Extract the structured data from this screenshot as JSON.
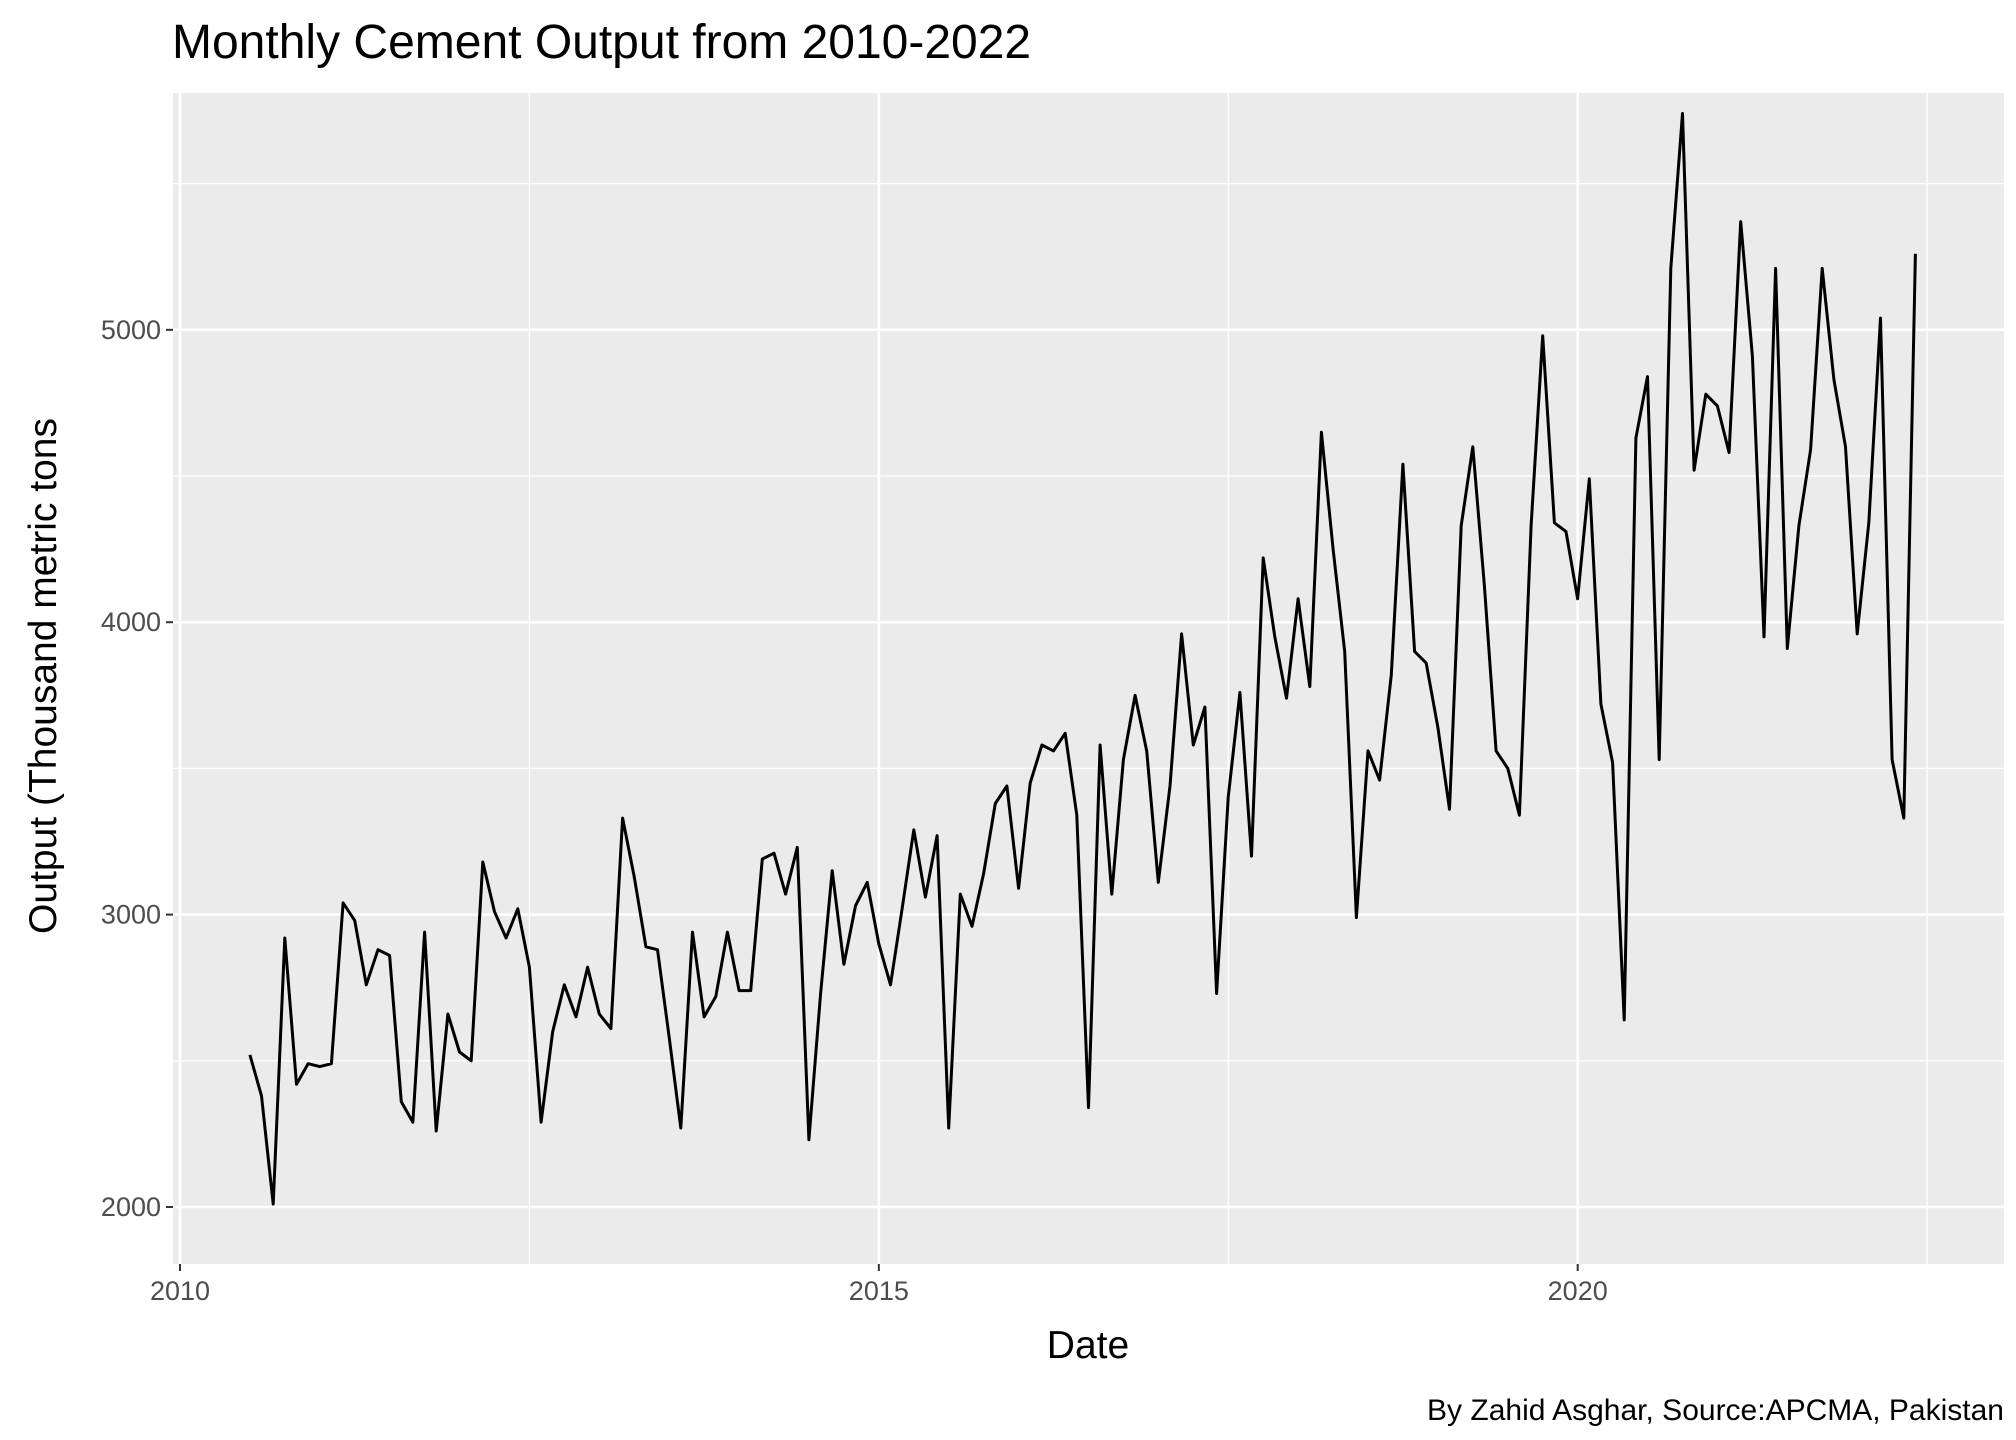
{
  "chart_data": {
    "type": "line",
    "title": "Monthly Cement Output from 2010-2022",
    "xlabel": "Date",
    "ylabel": "Output (Thousand metric tons",
    "caption": "By Zahid Asghar, Source:APCMA, Pakistan",
    "xlim": [
      2009.95,
      2023.05
    ],
    "ylim": [
      1805,
      5810
    ],
    "x_ticks": [
      2010,
      2015,
      2020
    ],
    "x_tick_labels": [
      "2010",
      "2015",
      "2020"
    ],
    "y_ticks": [
      2000,
      3000,
      4000,
      5000
    ],
    "y_tick_labels": [
      "2000",
      "3000",
      "4000",
      "5000"
    ],
    "grid": true,
    "legend": "none",
    "colors": {
      "panel": "#ebebeb",
      "grid": "#ffffff",
      "line": "#000000",
      "tick": "#4d4d4d"
    },
    "series": [
      {
        "x_start": 2010.5,
        "x_step": 0.08333,
        "values": [
          2520,
          2380,
          2010,
          2920,
          2420,
          2490,
          2480,
          2490,
          3040,
          2980,
          2760,
          2880,
          2860,
          2360,
          2290,
          2940,
          2260,
          2660,
          2530,
          2500,
          3180,
          3010,
          2920,
          3020,
          2820,
          2290,
          2600,
          2760,
          2650,
          2820,
          2660,
          2610,
          3330,
          3130,
          2890,
          2880,
          2580,
          2270,
          2940,
          2650,
          2720,
          2940,
          2740,
          2740,
          3190,
          3210,
          3070,
          3230,
          2230,
          2730,
          3150,
          2830,
          3030,
          3110,
          2900,
          2760,
          3020,
          3290,
          3060,
          3270,
          2270,
          3070,
          2960,
          3140,
          3380,
          3440,
          3090,
          3450,
          3580,
          3560,
          3620,
          3340,
          2340,
          3580,
          3070,
          3530,
          3750,
          3560,
          3110,
          3440,
          3960,
          3580,
          3710,
          2730,
          3400,
          3760,
          3200,
          4220,
          3950,
          3740,
          4080,
          3780,
          4650,
          4250,
          3900,
          2990,
          3560,
          3460,
          3820,
          4540,
          3900,
          3860,
          3640,
          3360,
          4330,
          4600,
          4120,
          3560,
          3500,
          3340,
          4330,
          4980,
          4340,
          4310,
          4080,
          4490,
          3720,
          3520,
          2640,
          4630,
          4840,
          3530,
          5210,
          5740,
          4520,
          4780,
          4740,
          4580,
          5370,
          4910,
          3950,
          5210,
          3910,
          4330,
          4590,
          5210,
          4830,
          4600,
          3960,
          4340,
          5040,
          3530,
          3330,
          5260
        ]
      }
    ]
  }
}
